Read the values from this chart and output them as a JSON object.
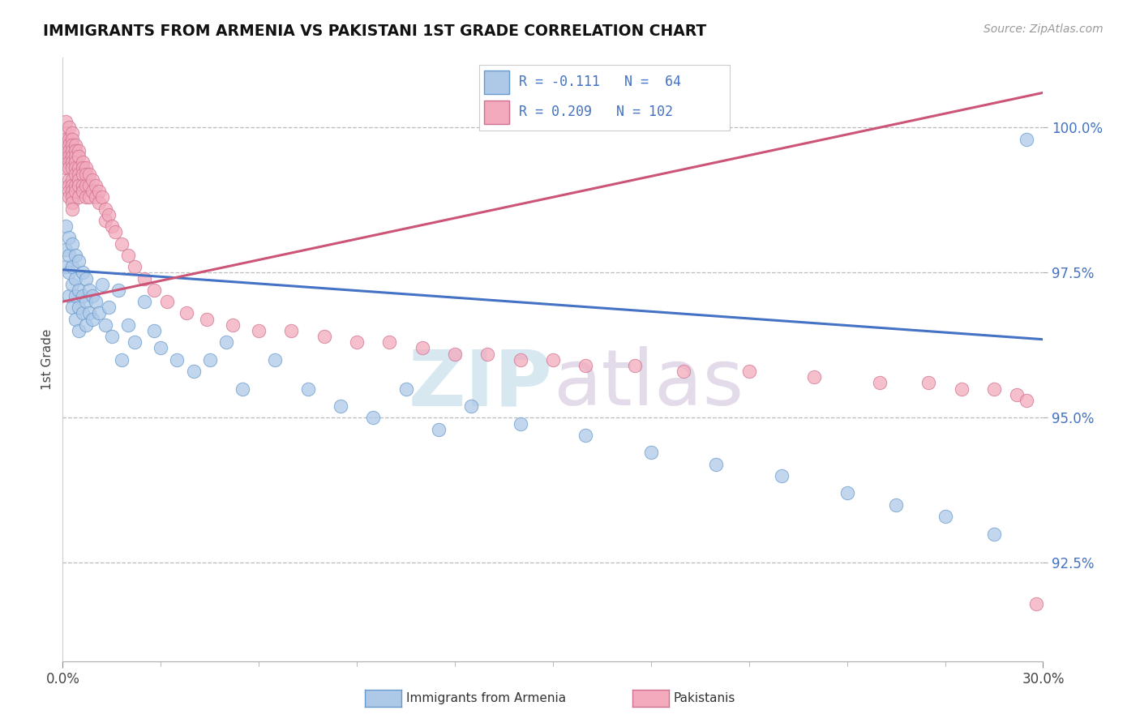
{
  "title": "IMMIGRANTS FROM ARMENIA VS PAKISTANI 1ST GRADE CORRELATION CHART",
  "source_text": "Source: ZipAtlas.com",
  "ylabel": "1st Grade",
  "x_min": 0.0,
  "x_max": 0.3,
  "y_min": 0.908,
  "y_max": 1.012,
  "x_tick_labels": [
    "0.0%",
    "30.0%"
  ],
  "x_minor_ticks": [
    0.03,
    0.06,
    0.09,
    0.12,
    0.15,
    0.18,
    0.21,
    0.24,
    0.27
  ],
  "y_tick_positions": [
    0.925,
    0.95,
    0.975,
    1.0
  ],
  "y_tick_labels": [
    "92.5%",
    "95.0%",
    "97.5%",
    "100.0%"
  ],
  "legend_r1": "R = -0.111",
  "legend_n1": "N =  64",
  "legend_r2": "R = 0.209",
  "legend_n2": "N = 102",
  "color_armenia_fill": "#AEC9E8",
  "color_armenia_edge": "#6699CC",
  "color_pakistan_fill": "#F2AABC",
  "color_pakistan_edge": "#D07090",
  "color_trend_armenia": "#4472C4",
  "color_trend_pakistan": "#CC5577",
  "source_color": "#999999",
  "armenia_x": [
    0.001,
    0.001,
    0.001,
    0.002,
    0.002,
    0.002,
    0.002,
    0.003,
    0.003,
    0.003,
    0.003,
    0.004,
    0.004,
    0.004,
    0.004,
    0.005,
    0.005,
    0.005,
    0.005,
    0.006,
    0.006,
    0.006,
    0.007,
    0.007,
    0.007,
    0.008,
    0.008,
    0.009,
    0.009,
    0.01,
    0.011,
    0.012,
    0.013,
    0.014,
    0.015,
    0.017,
    0.018,
    0.02,
    0.022,
    0.025,
    0.028,
    0.03,
    0.035,
    0.04,
    0.045,
    0.05,
    0.055,
    0.065,
    0.075,
    0.085,
    0.095,
    0.105,
    0.115,
    0.125,
    0.14,
    0.16,
    0.18,
    0.2,
    0.22,
    0.24,
    0.255,
    0.27,
    0.285,
    0.295
  ],
  "armenia_y": [
    0.983,
    0.979,
    0.976,
    0.981,
    0.975,
    0.978,
    0.971,
    0.98,
    0.976,
    0.973,
    0.969,
    0.978,
    0.974,
    0.971,
    0.967,
    0.977,
    0.972,
    0.969,
    0.965,
    0.975,
    0.971,
    0.968,
    0.974,
    0.97,
    0.966,
    0.972,
    0.968,
    0.971,
    0.967,
    0.97,
    0.968,
    0.973,
    0.966,
    0.969,
    0.964,
    0.972,
    0.96,
    0.966,
    0.963,
    0.97,
    0.965,
    0.962,
    0.96,
    0.958,
    0.96,
    0.963,
    0.955,
    0.96,
    0.955,
    0.952,
    0.95,
    0.955,
    0.948,
    0.952,
    0.949,
    0.947,
    0.944,
    0.942,
    0.94,
    0.937,
    0.935,
    0.933,
    0.93,
    0.998
  ],
  "pakistan_x": [
    0.001,
    0.001,
    0.001,
    0.001,
    0.001,
    0.001,
    0.001,
    0.001,
    0.002,
    0.002,
    0.002,
    0.002,
    0.002,
    0.002,
    0.002,
    0.002,
    0.002,
    0.002,
    0.002,
    0.003,
    0.003,
    0.003,
    0.003,
    0.003,
    0.003,
    0.003,
    0.003,
    0.003,
    0.003,
    0.003,
    0.003,
    0.003,
    0.004,
    0.004,
    0.004,
    0.004,
    0.004,
    0.004,
    0.004,
    0.004,
    0.005,
    0.005,
    0.005,
    0.005,
    0.005,
    0.005,
    0.005,
    0.006,
    0.006,
    0.006,
    0.006,
    0.006,
    0.007,
    0.007,
    0.007,
    0.007,
    0.008,
    0.008,
    0.008,
    0.009,
    0.009,
    0.01,
    0.01,
    0.011,
    0.011,
    0.012,
    0.013,
    0.013,
    0.014,
    0.015,
    0.016,
    0.018,
    0.02,
    0.022,
    0.025,
    0.028,
    0.032,
    0.038,
    0.044,
    0.052,
    0.06,
    0.07,
    0.08,
    0.09,
    0.1,
    0.11,
    0.12,
    0.13,
    0.14,
    0.15,
    0.16,
    0.175,
    0.19,
    0.21,
    0.23,
    0.25,
    0.265,
    0.275,
    0.285,
    0.292,
    0.295,
    0.298
  ],
  "pakistan_y": [
    1.001,
    0.999,
    0.998,
    0.997,
    0.996,
    0.995,
    0.994,
    0.993,
    1.0,
    0.998,
    0.997,
    0.996,
    0.995,
    0.994,
    0.993,
    0.991,
    0.99,
    0.989,
    0.988,
    0.999,
    0.998,
    0.997,
    0.996,
    0.995,
    0.994,
    0.993,
    0.991,
    0.99,
    0.989,
    0.988,
    0.987,
    0.986,
    0.997,
    0.996,
    0.995,
    0.994,
    0.993,
    0.992,
    0.99,
    0.989,
    0.996,
    0.995,
    0.993,
    0.992,
    0.991,
    0.99,
    0.988,
    0.994,
    0.993,
    0.992,
    0.99,
    0.989,
    0.993,
    0.992,
    0.99,
    0.988,
    0.992,
    0.99,
    0.988,
    0.991,
    0.989,
    0.99,
    0.988,
    0.989,
    0.987,
    0.988,
    0.986,
    0.984,
    0.985,
    0.983,
    0.982,
    0.98,
    0.978,
    0.976,
    0.974,
    0.972,
    0.97,
    0.968,
    0.967,
    0.966,
    0.965,
    0.965,
    0.964,
    0.963,
    0.963,
    0.962,
    0.961,
    0.961,
    0.96,
    0.96,
    0.959,
    0.959,
    0.958,
    0.958,
    0.957,
    0.956,
    0.956,
    0.955,
    0.955,
    0.954,
    0.953,
    0.918
  ],
  "trend_armenia_x0": 0.0,
  "trend_armenia_y0": 0.9755,
  "trend_armenia_x1": 0.3,
  "trend_armenia_y1": 0.9635,
  "trend_pakistan_x0": 0.0,
  "trend_pakistan_y0": 0.97,
  "trend_pakistan_x1": 0.3,
  "trend_pakistan_y1": 1.006
}
